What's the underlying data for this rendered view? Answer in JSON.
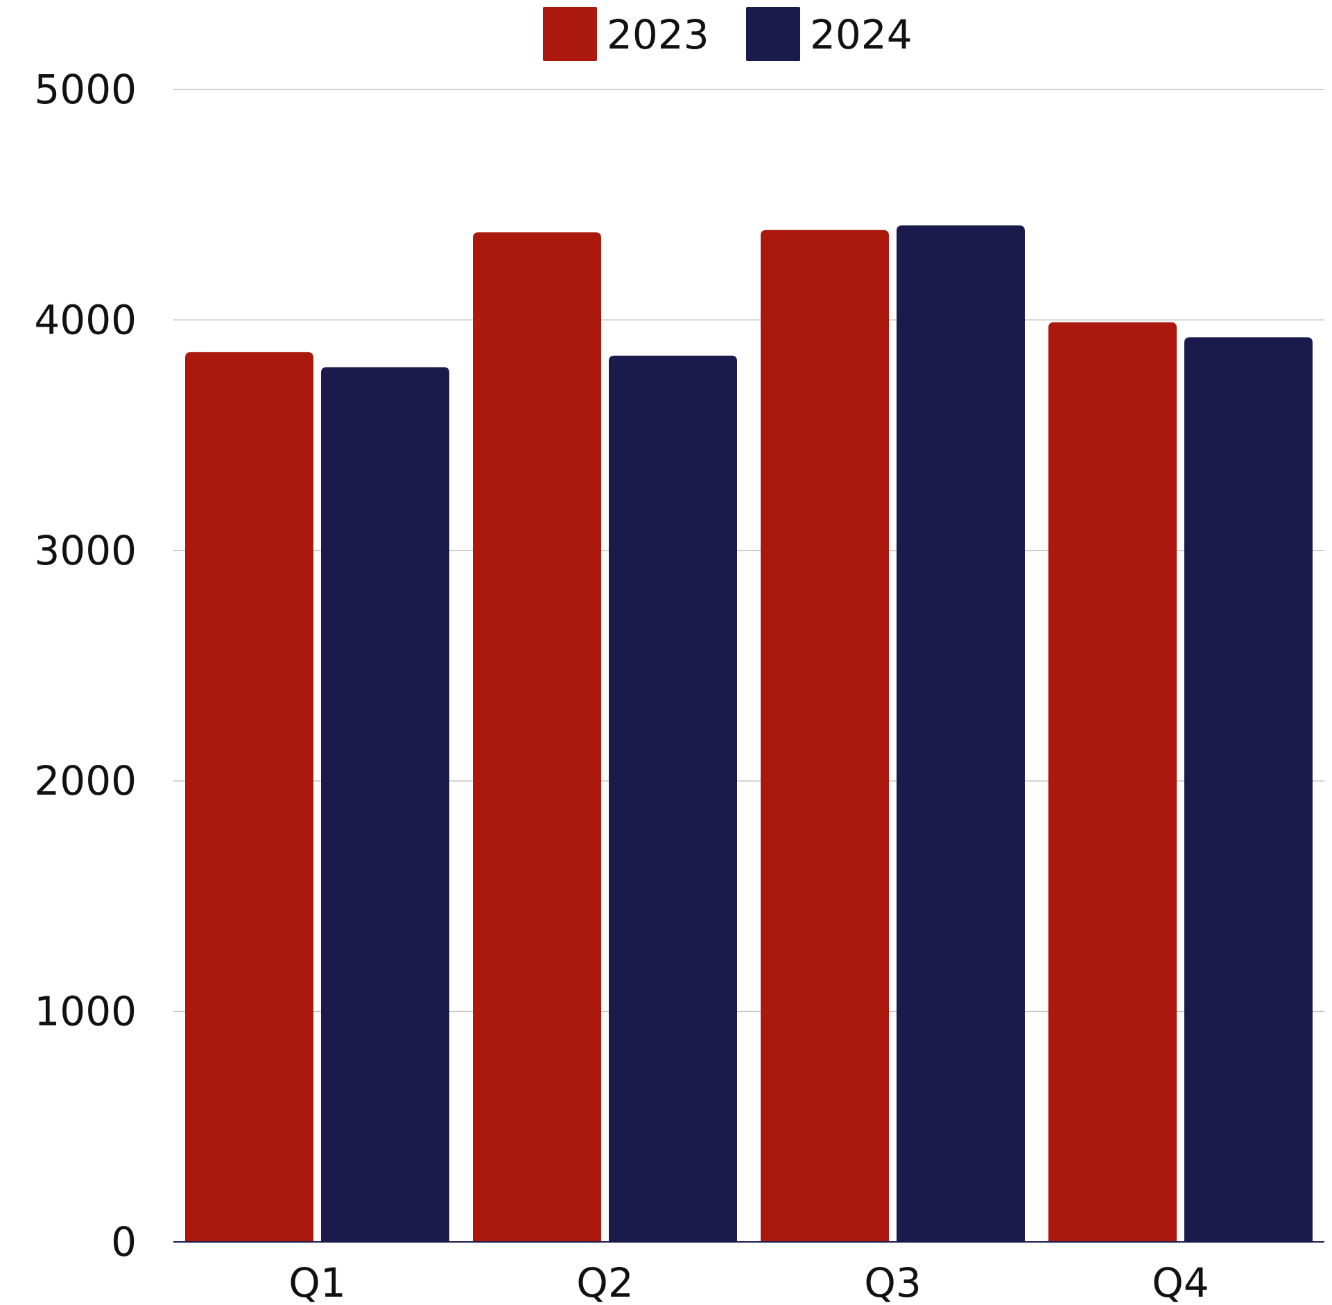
{
  "chart_data": {
    "type": "bar",
    "title": "",
    "xlabel": "",
    "ylabel": "",
    "categories": [
      "Q1",
      "Q2",
      "Q3",
      "Q4"
    ],
    "series": [
      {
        "name": "2023",
        "color": "#AA180E",
        "values": [
          3860,
          4380,
          4390,
          3990
        ]
      },
      {
        "name": "2024",
        "color": "#1B1A4D",
        "values": [
          3795,
          3845,
          4410,
          3925
        ]
      }
    ],
    "ylim": [
      0,
      5000
    ],
    "yticks": [
      "0",
      "1000",
      "2000",
      "3000",
      "4000",
      "5000"
    ],
    "grid": true,
    "legend_position": "top-center"
  }
}
